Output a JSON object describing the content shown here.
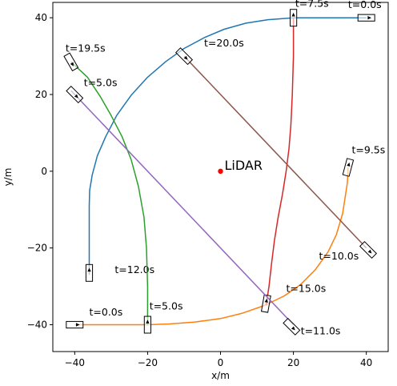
{
  "chart_data": {
    "type": "line",
    "xlabel": "x/m",
    "ylabel": "y/m",
    "xlim": [
      -46,
      46
    ],
    "ylim": [
      -47,
      44
    ],
    "xticks": [
      -40,
      -20,
      0,
      20,
      40
    ],
    "yticks": [
      -40,
      -20,
      0,
      20,
      40
    ],
    "xtick_labels": [
      "−40",
      "−20",
      "0",
      "20",
      "40"
    ],
    "ytick_labels": [
      "−40",
      "−20",
      "0",
      "20",
      "40"
    ],
    "grid": false,
    "lidar": {
      "x": 0,
      "y": 0,
      "label": "LiDAR",
      "color": "#ff0000"
    },
    "series": [
      {
        "color": "#1f77b4",
        "points": [
          [
            40,
            40
          ],
          [
            20,
            40
          ],
          [
            13,
            39.5
          ],
          [
            7,
            38.6
          ],
          [
            1,
            37
          ],
          [
            -4.5,
            34.8
          ],
          [
            -10,
            32
          ],
          [
            -15,
            28.6
          ],
          [
            -20,
            24.5
          ],
          [
            -24.5,
            19.8
          ],
          [
            -28.5,
            14.5
          ],
          [
            -31.5,
            9
          ],
          [
            -33.8,
            4
          ],
          [
            -35.2,
            -1
          ],
          [
            -35.9,
            -5
          ],
          [
            -36,
            -9
          ],
          [
            -36,
            -27
          ]
        ],
        "boxes": [
          {
            "x": 40,
            "y": 40,
            "w": 4.6,
            "h": 1.8,
            "angle": 0,
            "label": "t=0.0s",
            "lx": 35,
            "ly": 42.5
          },
          {
            "x": -36,
            "y": -26.5,
            "w": 4.6,
            "h": 1.8,
            "angle": 90,
            "label": "t=12.0s",
            "lx": -29,
            "ly": -26.5
          }
        ]
      },
      {
        "color": "#ff7f0e",
        "points": [
          [
            -40,
            -40
          ],
          [
            -30,
            -40
          ],
          [
            -20,
            -40
          ],
          [
            -14,
            -39.8
          ],
          [
            -7,
            -39.3
          ],
          [
            0,
            -38.4
          ],
          [
            6,
            -37
          ],
          [
            12,
            -35
          ],
          [
            17.5,
            -32.5
          ],
          [
            22,
            -29.5
          ],
          [
            26,
            -25.7
          ],
          [
            29.5,
            -21
          ],
          [
            31.8,
            -16.5
          ],
          [
            33.5,
            -11
          ],
          [
            34.8,
            -3
          ],
          [
            35,
            1
          ]
        ],
        "boxes": [
          {
            "x": -40,
            "y": -40,
            "w": 4.6,
            "h": 1.8,
            "angle": 0,
            "label": "t=0.0s",
            "lx": -36,
            "ly": -37.6
          },
          {
            "x": 35,
            "y": 1,
            "w": 4.6,
            "h": 1.8,
            "angle": 75,
            "label": "t=9.5s",
            "lx": 36,
            "ly": 4.7
          }
        ]
      },
      {
        "color": "#2ca02c",
        "points": [
          [
            -20,
            -40
          ],
          [
            -20,
            -30
          ],
          [
            -20.3,
            -20
          ],
          [
            -21,
            -12
          ],
          [
            -22.5,
            -4
          ],
          [
            -24.5,
            3
          ],
          [
            -27,
            9
          ],
          [
            -30,
            14.5
          ],
          [
            -33,
            19.5
          ],
          [
            -36.5,
            24.5
          ],
          [
            -41,
            28.5
          ]
        ],
        "boxes": [
          {
            "x": -20,
            "y": -40,
            "w": 4.6,
            "h": 1.8,
            "angle": 90,
            "label": "t=5.0s",
            "lx": -19.5,
            "ly": -36
          },
          {
            "x": -41,
            "y": 28.5,
            "w": 4.6,
            "h": 1.8,
            "angle": -60,
            "label": "t=19.5s",
            "lx": -42.5,
            "ly": 31.2
          }
        ]
      },
      {
        "color": "#d62728",
        "points": [
          [
            20,
            40
          ],
          [
            20,
            30
          ],
          [
            19.7,
            20
          ],
          [
            19.3,
            12
          ],
          [
            18.8,
            6
          ],
          [
            18,
            0
          ],
          [
            17,
            -6
          ],
          [
            15.8,
            -12
          ],
          [
            14.8,
            -18
          ],
          [
            14,
            -24
          ],
          [
            13.3,
            -30
          ],
          [
            12.5,
            -35
          ]
        ],
        "boxes": [
          {
            "x": 20,
            "y": 40,
            "w": 4.6,
            "h": 1.8,
            "angle": 90,
            "label": "t=7.5s",
            "lx": 20.5,
            "ly": 42.9
          },
          {
            "x": 12.5,
            "y": -34.5,
            "w": 4.6,
            "h": 1.8,
            "angle": 80,
            "label": "t=15.0s",
            "lx": 18,
            "ly": -31.5
          }
        ]
      },
      {
        "color": "#9467bd",
        "points": [
          [
            -41,
            21
          ],
          [
            20,
            -40
          ]
        ],
        "boxes": [
          {
            "x": -40,
            "y": 20,
            "w": 4.6,
            "h": 1.8,
            "angle": -45,
            "label": "t=5.0s",
            "lx": -37.5,
            "ly": 22.2
          },
          {
            "x": 19.5,
            "y": -40.5,
            "w": 4.6,
            "h": 1.8,
            "angle": -45,
            "label": "t=11.0s",
            "lx": 22,
            "ly": -42.5
          }
        ]
      },
      {
        "color": "#8c564b",
        "points": [
          [
            -10,
            30
          ],
          [
            40,
            -20
          ]
        ],
        "boxes": [
          {
            "x": -10,
            "y": 30,
            "w": 4.6,
            "h": 1.8,
            "angle": -45,
            "label": "t=20.0s",
            "lx": -4.5,
            "ly": 32.5
          },
          {
            "x": 40.5,
            "y": -20.5,
            "w": 4.6,
            "h": 1.8,
            "angle": -45,
            "label": "t=10.0s",
            "lx": 27,
            "ly": -23
          }
        ]
      }
    ]
  }
}
